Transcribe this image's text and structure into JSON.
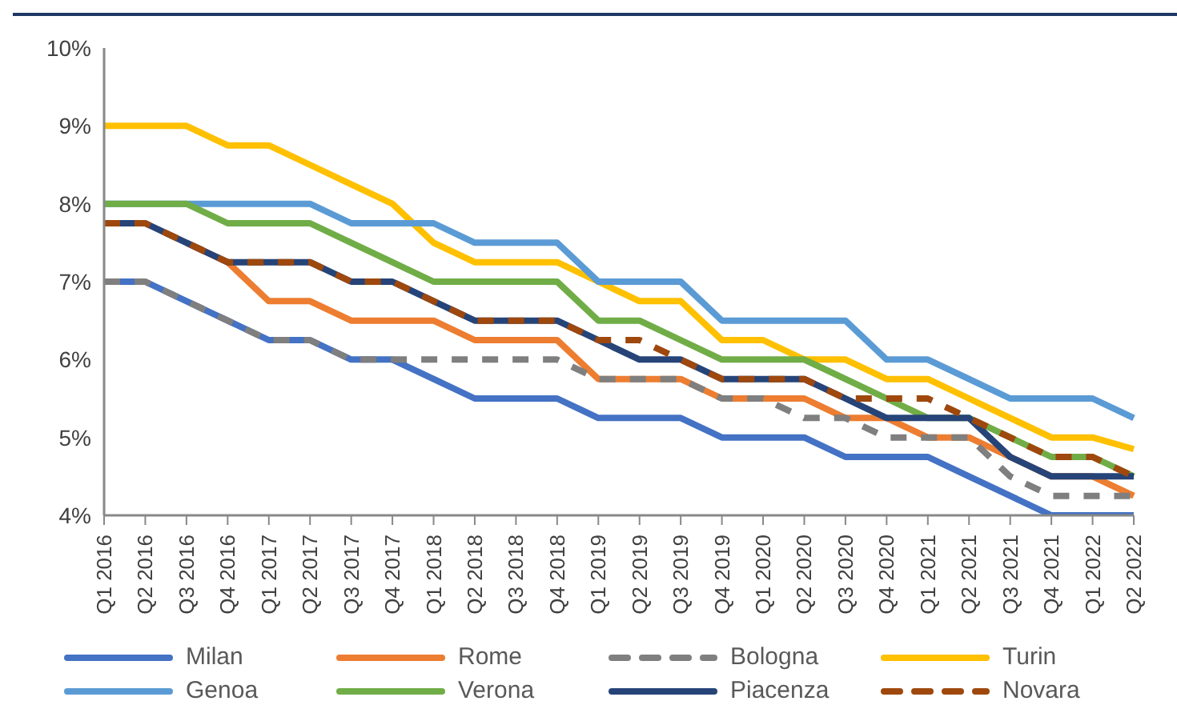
{
  "chart_data": {
    "type": "line",
    "categories": [
      "Q1 2016",
      "Q2 2016",
      "Q3 2016",
      "Q4 2016",
      "Q1 2017",
      "Q2 2017",
      "Q3 2017",
      "Q4 2017",
      "Q1 2018",
      "Q2 2018",
      "Q3 2018",
      "Q4 2018",
      "Q1 2019",
      "Q2 2019",
      "Q3 2019",
      "Q4 2019",
      "Q1 2020",
      "Q2 2020",
      "Q3 2020",
      "Q4 2020",
      "Q1 2021",
      "Q2 2021",
      "Q3 2021",
      "Q4 2021",
      "Q1 2022",
      "Q2 2022"
    ],
    "series": [
      {
        "name": "Milan",
        "color": "#4472c4",
        "values": [
          7,
          7,
          6.75,
          6.5,
          6.25,
          6.25,
          6,
          6,
          5.75,
          5.5,
          5.5,
          5.5,
          5.25,
          5.25,
          5.25,
          5,
          5,
          5,
          4.75,
          4.75,
          4.75,
          4.5,
          4.25,
          4,
          4,
          4
        ]
      },
      {
        "name": "Rome",
        "color": "#ed7d31",
        "values": [
          null,
          null,
          7.5,
          7.25,
          6.75,
          6.75,
          6.5,
          6.5,
          6.5,
          6.25,
          6.25,
          6.25,
          5.75,
          5.75,
          5.75,
          5.5,
          5.5,
          5.5,
          5.25,
          5.25,
          5,
          5,
          4.75,
          4.5,
          4.5,
          4.25
        ]
      },
      {
        "name": "Bologna",
        "color": "#7f7f7f",
        "line_style": "dashed",
        "values": [
          7,
          7,
          6.75,
          6.5,
          6.25,
          6.25,
          6,
          6,
          6,
          6,
          6,
          6,
          5.75,
          5.75,
          5.75,
          5.5,
          5.5,
          5.25,
          5.25,
          5,
          5,
          5,
          4.5,
          4.25,
          4.25,
          4.25
        ]
      },
      {
        "name": "Turin",
        "color": "#ffc000",
        "values": [
          9,
          9,
          9,
          8.75,
          8.75,
          8.5,
          8.25,
          8,
          7.5,
          7.25,
          7.25,
          7.25,
          7,
          6.75,
          6.75,
          6.25,
          6.25,
          6,
          6,
          5.75,
          5.75,
          5.5,
          5.25,
          5,
          5,
          4.85
        ]
      },
      {
        "name": "Genoa",
        "color": "#5b9bd5",
        "values": [
          8,
          8,
          8,
          8,
          8,
          8,
          7.75,
          7.75,
          7.75,
          7.5,
          7.5,
          7.5,
          7,
          7,
          7,
          6.5,
          6.5,
          6.5,
          6.5,
          6,
          6,
          5.75,
          5.5,
          5.5,
          5.5,
          5.25
        ]
      },
      {
        "name": "Verona",
        "color": "#70ad47",
        "values": [
          8,
          8,
          8,
          7.75,
          7.75,
          7.75,
          7.5,
          7.25,
          7,
          7,
          7,
          7,
          6.5,
          6.5,
          6.25,
          6,
          6,
          6,
          5.75,
          5.5,
          5.25,
          5.25,
          5,
          4.75,
          4.75,
          4.5
        ]
      },
      {
        "name": "Piacenza",
        "color": "#264478",
        "values": [
          7.75,
          7.75,
          7.5,
          7.25,
          7.25,
          7.25,
          7,
          7,
          6.75,
          6.5,
          6.5,
          6.5,
          6.25,
          6,
          6,
          5.75,
          5.75,
          5.75,
          5.5,
          5.25,
          5.25,
          5.25,
          4.75,
          4.5,
          4.5,
          4.5
        ]
      },
      {
        "name": "Novara",
        "color": "#9e480e",
        "line_style": "dashed",
        "values": [
          7.75,
          7.75,
          7.5,
          7.25,
          7.25,
          7.25,
          7,
          7,
          6.75,
          6.5,
          6.5,
          6.5,
          6.25,
          6.25,
          6,
          5.75,
          5.75,
          5.75,
          5.5,
          5.5,
          5.5,
          5.25,
          5,
          4.75,
          4.75,
          4.5
        ]
      }
    ],
    "ylim": [
      4,
      10
    ],
    "yticks": [
      {
        "value": 4,
        "label": "4%"
      },
      {
        "value": 5,
        "label": "5%"
      },
      {
        "value": 6,
        "label": "6%"
      },
      {
        "value": 7,
        "label": "7%"
      },
      {
        "value": 8,
        "label": "8%"
      },
      {
        "value": 9,
        "label": "9%"
      },
      {
        "value": 10,
        "label": "10%"
      }
    ],
    "grid": false,
    "legend": "bottom"
  }
}
